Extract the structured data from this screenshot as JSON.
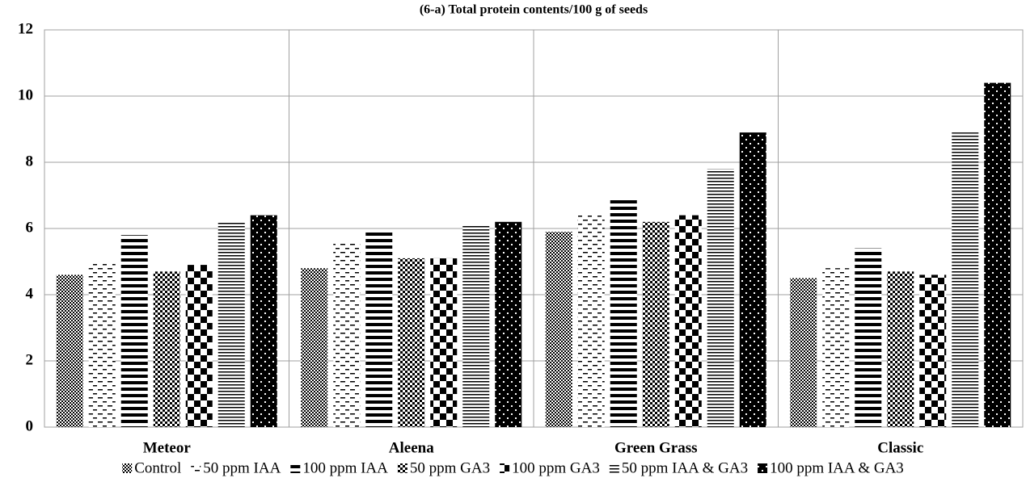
{
  "chart_data": {
    "type": "bar",
    "title": "(6-a) Total protein contents/100 g of seeds",
    "categories": [
      "Meteor",
      "Aleena",
      "Green Grass",
      "Classic"
    ],
    "series": [
      {
        "name": "Control",
        "color": "#000000",
        "pattern": "fine-check",
        "values": [
          4.6,
          4.8,
          5.9,
          4.5
        ]
      },
      {
        "name": "50 ppm IAA",
        "color": "#000000",
        "pattern": "dashes",
        "values": [
          5.0,
          5.6,
          6.4,
          4.8
        ]
      },
      {
        "name": "100 ppm IAA",
        "color": "#000000",
        "pattern": "wide-horizontal",
        "values": [
          5.8,
          5.9,
          6.9,
          5.4
        ]
      },
      {
        "name": "50 ppm GA3",
        "color": "#000000",
        "pattern": "small-check",
        "values": [
          4.7,
          5.1,
          6.2,
          4.7
        ]
      },
      {
        "name": "100 ppm GA3",
        "color": "#000000",
        "pattern": "large-check",
        "values": [
          4.9,
          5.1,
          6.4,
          4.6
        ]
      },
      {
        "name": "50 ppm IAA & GA3",
        "color": "#000000",
        "pattern": "narrow-horizontal",
        "values": [
          6.2,
          6.1,
          7.8,
          8.9
        ]
      },
      {
        "name": "100 ppm IAA & GA3",
        "color": "#000000",
        "pattern": "dots",
        "values": [
          6.4,
          6.2,
          8.9,
          10.4
        ]
      }
    ],
    "ylim": [
      0,
      12
    ],
    "yticks": [
      0,
      2,
      4,
      6,
      8,
      10,
      12
    ],
    "grid": true,
    "legend": "bottom"
  }
}
